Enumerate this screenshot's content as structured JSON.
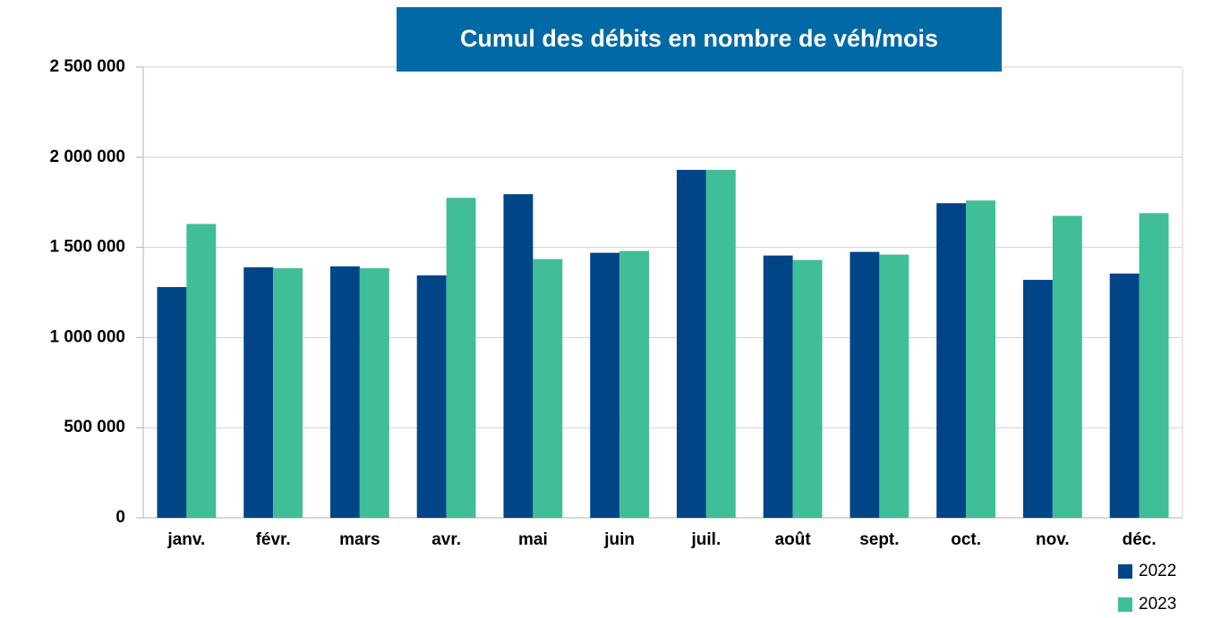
{
  "chart_data": {
    "type": "bar",
    "title": "Cumul des débits en nombre de véh/mois",
    "categories": [
      "janv.",
      "févr.",
      "mars",
      "avr.",
      "mai",
      "juin",
      "juil.",
      "août",
      "sept.",
      "oct.",
      "nov.",
      "déc."
    ],
    "series": [
      {
        "name": "2022",
        "color": "#004586",
        "values": [
          1280000,
          1390000,
          1395000,
          1345000,
          1795000,
          1470000,
          1930000,
          1455000,
          1475000,
          1745000,
          1320000,
          1355000
        ]
      },
      {
        "name": "2023",
        "color": "#3fbe98",
        "values": [
          1630000,
          1385000,
          1385000,
          1775000,
          1435000,
          1480000,
          1930000,
          1430000,
          1460000,
          1760000,
          1675000,
          1690000
        ]
      }
    ],
    "ylim": [
      0,
      2500000
    ],
    "yticks": [
      0,
      {
        "value": 500000,
        "label": "500 000"
      },
      {
        "value": 1000000,
        "label": "1 000 000"
      },
      {
        "value": 1500000,
        "label": "1 500 000"
      },
      {
        "value": 2000000,
        "label": "2 000 000"
      },
      {
        "value": 2500000,
        "label": "2 500 000"
      }
    ],
    "grid": true,
    "legend": "bottom-right"
  }
}
